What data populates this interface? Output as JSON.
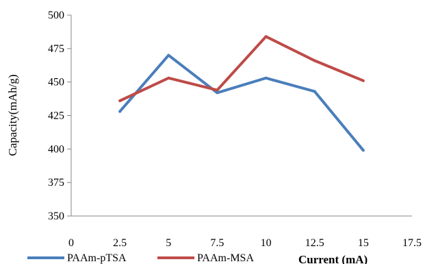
{
  "chart_data": {
    "type": "line",
    "title": "",
    "xlabel": "Current (mA)",
    "ylabel": "Capacity(mAh/g)",
    "xlim": [
      0,
      17.5
    ],
    "ylim": [
      350,
      500
    ],
    "x_ticks": [
      "0",
      "2.5",
      "5",
      "7.5",
      "10",
      "12.5",
      "15",
      "17.5"
    ],
    "y_ticks": [
      "350",
      "375",
      "400",
      "425",
      "450",
      "475",
      "500"
    ],
    "grid": false,
    "legend_position": "bottom",
    "x": [
      2.5,
      5,
      7.5,
      10,
      12.5,
      15
    ],
    "series": [
      {
        "name": "PAAm-pTSA",
        "color": "#4a7ebb",
        "values": [
          428,
          470,
          442,
          453,
          443,
          399
        ]
      },
      {
        "name": "PAAm-MSA",
        "color": "#be4b48",
        "values": [
          436,
          453,
          444,
          484,
          466,
          451
        ]
      }
    ]
  }
}
